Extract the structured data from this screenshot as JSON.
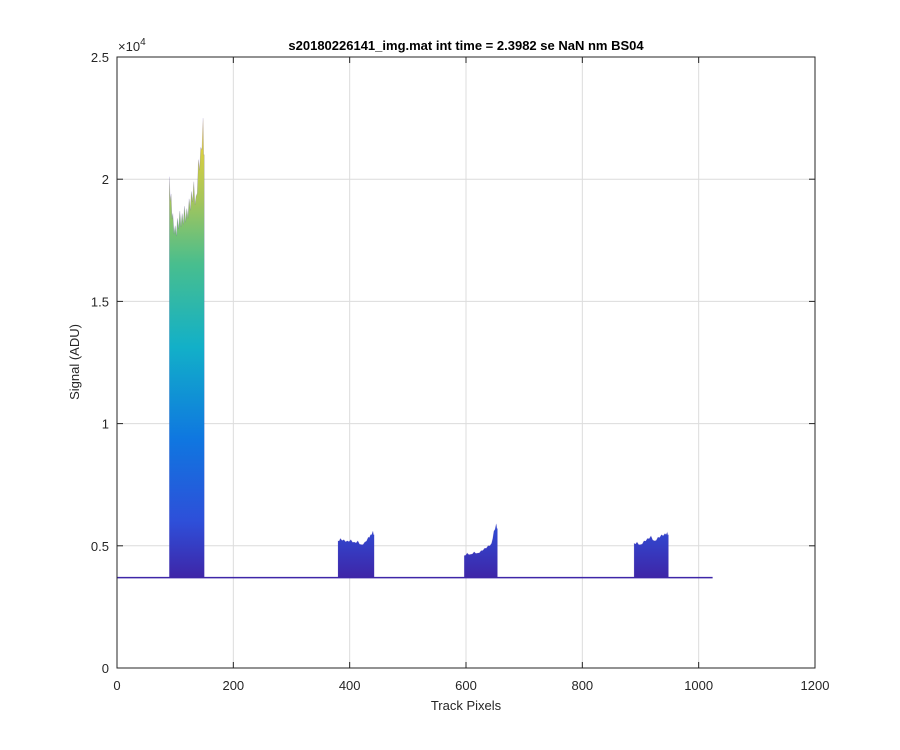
{
  "chart_data": {
    "type": "area",
    "title": "s20180226141_img.mat int time = 2.3982 se  NaN nm BS04",
    "xlabel": "Track Pixels",
    "ylabel": "Signal (ADU)",
    "xlim": [
      0,
      1200
    ],
    "ylim": [
      0,
      25000
    ],
    "xticks": [
      0,
      200,
      400,
      600,
      800,
      1000,
      1200
    ],
    "xtick_labels": [
      "0",
      "200",
      "400",
      "600",
      "800",
      "1000",
      "1200"
    ],
    "yticks": [
      0,
      5000,
      10000,
      15000,
      20000,
      25000
    ],
    "ytick_labels": [
      "0",
      "0.5",
      "1",
      "1.5",
      "2",
      "2.5"
    ],
    "y_exponent_label": "×10",
    "y_exponent_power": "4",
    "grid": true,
    "colormap": "parula",
    "colors": {
      "low": "#3e26a8",
      "mid_low": "#0f77e0",
      "mid": "#12b0c8",
      "mid_high": "#7cc963",
      "high": "#f9d631"
    },
    "baseline": 3700,
    "x_extent": [
      0,
      1024
    ],
    "peaks": [
      {
        "x": [
          90,
          93,
          96,
          100,
          104,
          108,
          112,
          116,
          120,
          124,
          128,
          132,
          136,
          140,
          144,
          148,
          150
        ],
        "y": [
          20100,
          19400,
          18600,
          18100,
          18400,
          18700,
          18600,
          18900,
          18800,
          19200,
          19500,
          19900,
          19300,
          20800,
          21300,
          22500,
          21000
        ]
      },
      {
        "x": [
          380,
          384,
          390,
          396,
          402,
          408,
          414,
          420,
          426,
          432,
          436,
          440,
          442
        ],
        "y": [
          5200,
          5300,
          5250,
          5200,
          5250,
          5150,
          5200,
          5050,
          5150,
          5350,
          5450,
          5600,
          5450
        ]
      },
      {
        "x": [
          597,
          602,
          608,
          614,
          620,
          626,
          632,
          638,
          644,
          648,
          652,
          654
        ],
        "y": [
          4600,
          4700,
          4650,
          4750,
          4700,
          4800,
          4900,
          5000,
          5100,
          5600,
          5900,
          5700
        ]
      },
      {
        "x": [
          889,
          894,
          900,
          906,
          912,
          918,
          924,
          930,
          936,
          942,
          946,
          948
        ],
        "y": [
          5100,
          5150,
          5050,
          5200,
          5300,
          5400,
          5200,
          5350,
          5450,
          5500,
          5550,
          5450
        ]
      }
    ]
  }
}
